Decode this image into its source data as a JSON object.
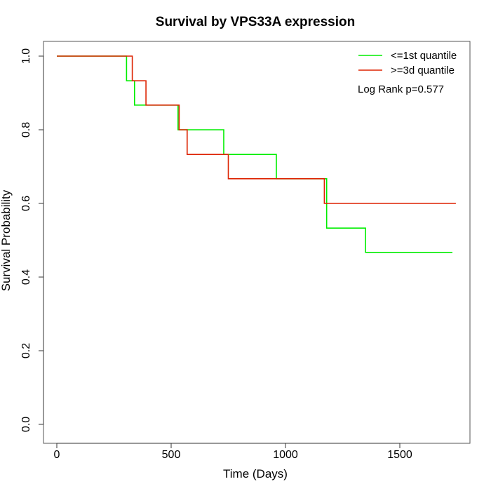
{
  "chart_data": {
    "type": "line",
    "title": "Survival by VPS33A expression",
    "xlabel": "Time (Days)",
    "ylabel": "Survival Probability",
    "xlim": [
      0,
      1800
    ],
    "ylim": [
      0,
      1.0
    ],
    "xticks": [
      0,
      500,
      1000,
      1500
    ],
    "yticks": [
      0.0,
      0.2,
      0.4,
      0.6,
      0.8,
      1.0
    ],
    "xtick_labels": [
      "0",
      "500",
      "1000",
      "1500"
    ],
    "ytick_labels": [
      "0.0",
      "0.2",
      "0.4",
      "0.6",
      "0.8",
      "1.0"
    ],
    "grid": false,
    "legend_position": "top-right",
    "annotation": "Log Rank p=0.577",
    "series": [
      {
        "name": "<=1st quantile",
        "color": "#00ee00",
        "step": true,
        "x": [
          0,
          305,
          340,
          530,
          730,
          960,
          1180,
          1350,
          1730
        ],
        "y": [
          1.0,
          0.933,
          0.867,
          0.8,
          0.733,
          0.667,
          0.533,
          0.467,
          0.467
        ]
      },
      {
        "name": ">=3d quantile",
        "color": "#dd2200",
        "step": true,
        "x": [
          0,
          330,
          390,
          535,
          570,
          750,
          1170,
          1745
        ],
        "y": [
          1.0,
          0.933,
          0.867,
          0.8,
          0.733,
          0.667,
          0.6,
          0.6
        ]
      }
    ]
  }
}
